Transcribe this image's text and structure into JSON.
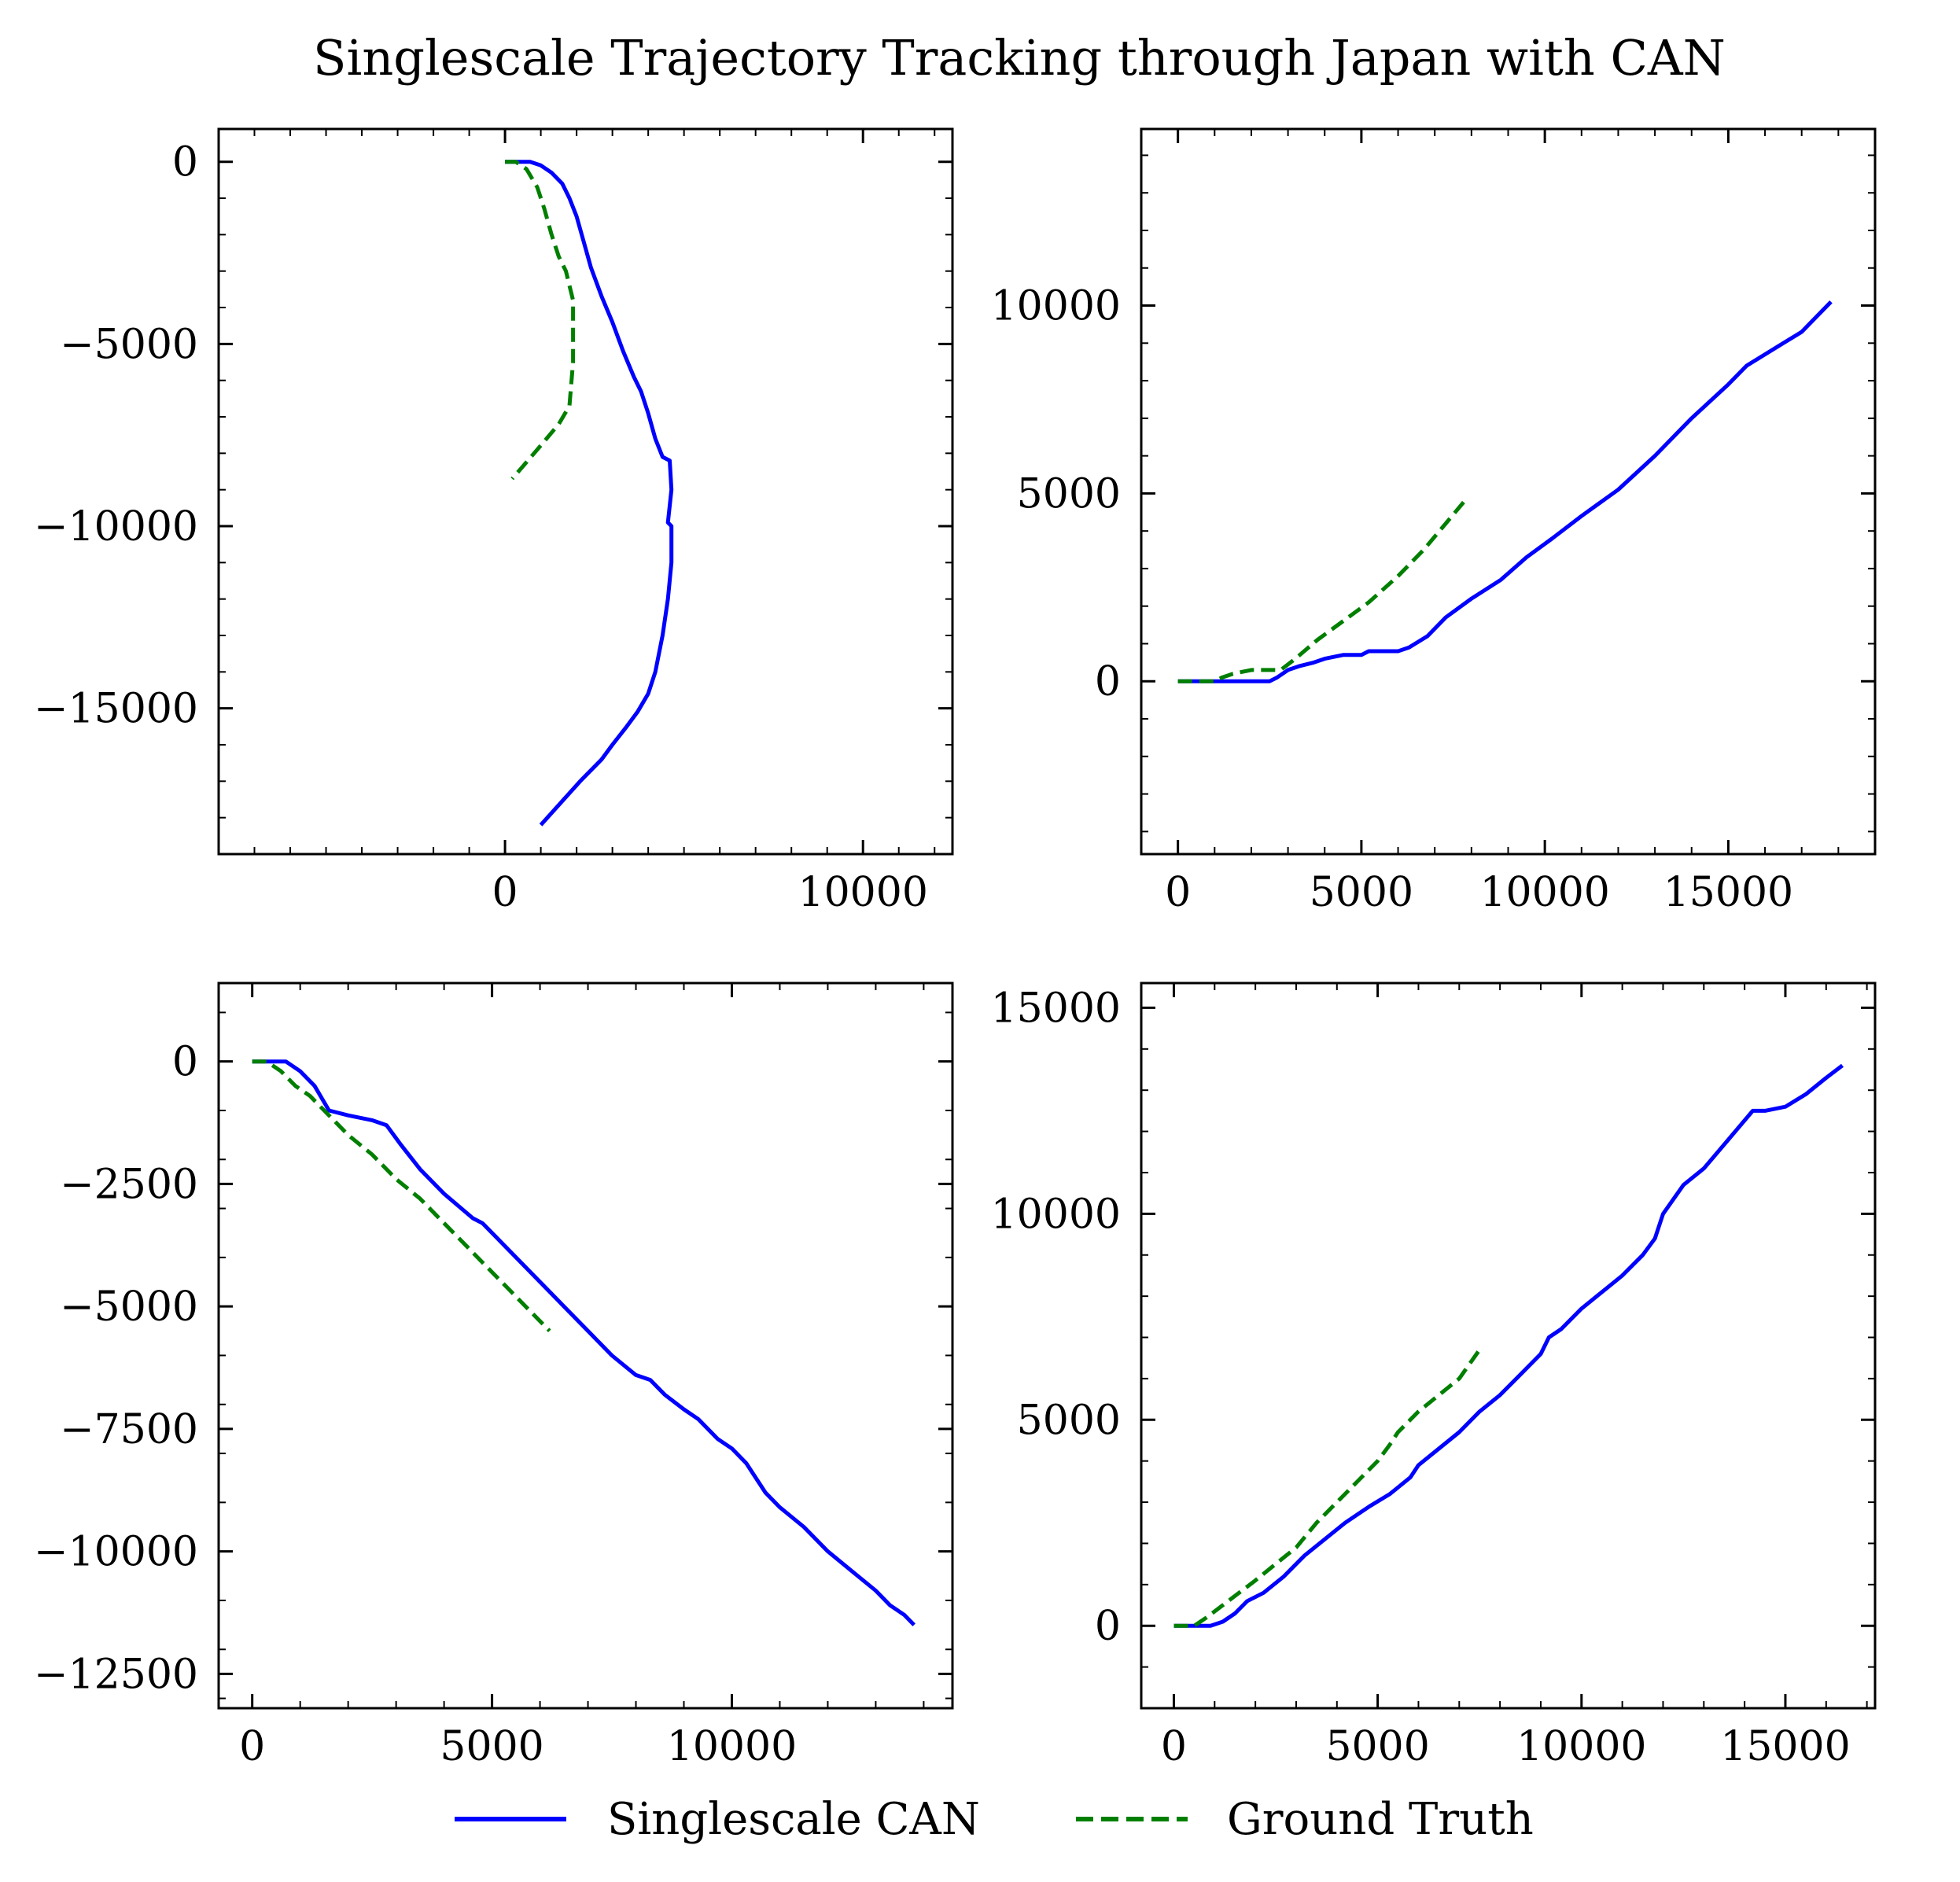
{
  "figure": {
    "title": "Singlescale Trajectory Tracking through Japan with CAN"
  },
  "legend": {
    "placement": "bottom-center",
    "entries": [
      {
        "label": "Singlescale CAN",
        "color": "#0000ff",
        "style": "solid"
      },
      {
        "label": "Ground Truth",
        "color": "#007f00",
        "style": "dashed"
      }
    ]
  },
  "chart_data": [
    {
      "type": "line",
      "grid": false,
      "xlim": [
        -8000,
        12500
      ],
      "ylim": [
        -19000,
        900
      ],
      "xticks": [
        0,
        10000
      ],
      "yticks": [
        0,
        -5000,
        -10000,
        -15000
      ],
      "series": [
        {
          "name": "Singlescale CAN",
          "color": "#0000ff",
          "dash": false,
          "x": [
            0,
            300,
            700,
            1000,
            1300,
            1600,
            1800,
            2000,
            2200,
            2400,
            2700,
            3000,
            3300,
            3600,
            3800,
            4000,
            4200,
            4400,
            4600,
            4650,
            4550,
            4650,
            4650,
            4550,
            4400,
            4200,
            4000,
            3700,
            3400,
            3000,
            2700,
            2100,
            1000
          ],
          "y": [
            0,
            0,
            0,
            -100,
            -300,
            -600,
            -1000,
            -1500,
            -2200,
            -2900,
            -3700,
            -4400,
            -5200,
            -5900,
            -6300,
            -6900,
            -7600,
            -8100,
            -8200,
            -9000,
            -9900,
            -10000,
            -11000,
            -12000,
            -13000,
            -14000,
            -14600,
            -15100,
            -15500,
            -16000,
            -16400,
            -17000,
            -18200
          ]
        },
        {
          "name": "Ground Truth",
          "color": "#007f00",
          "dash": true,
          "x": [
            0,
            300,
            600,
            900,
            1100,
            1300,
            1500,
            1700,
            1900,
            1900,
            1900,
            1800,
            1500,
            900,
            200
          ],
          "y": [
            0,
            0,
            -200,
            -700,
            -1300,
            -2000,
            -2600,
            -3000,
            -3800,
            -4500,
            -5500,
            -6700,
            -7200,
            -7900,
            -8700
          ]
        }
      ]
    },
    {
      "type": "line",
      "grid": false,
      "xlim": [
        -1000,
        19000
      ],
      "ylim": [
        -4600,
        14700
      ],
      "xticks": [
        0,
        5000,
        10000,
        15000
      ],
      "yticks": [
        0,
        5000,
        10000
      ],
      "series": [
        {
          "name": "Singlescale CAN",
          "color": "#0000ff",
          "dash": false,
          "x": [
            0,
            1000,
            2000,
            2500,
            2700,
            3000,
            3300,
            3700,
            4000,
            4500,
            5000,
            5200,
            5500,
            6000,
            6300,
            6800,
            7300,
            8000,
            8800,
            9500,
            10200,
            11000,
            12000,
            13000,
            14000,
            15000,
            15500,
            16500,
            17000,
            17800
          ],
          "y": [
            0,
            0,
            0,
            0,
            100,
            300,
            400,
            500,
            600,
            700,
            700,
            800,
            800,
            800,
            900,
            1200,
            1700,
            2200,
            2700,
            3300,
            3800,
            4400,
            5100,
            6000,
            7000,
            7900,
            8400,
            9000,
            9300,
            10100
          ]
        },
        {
          "name": "Ground Truth",
          "color": "#007f00",
          "dash": true,
          "x": [
            0,
            600,
            1000,
            1200,
            1500,
            2000,
            2500,
            2800,
            3200,
            3800,
            4500,
            5200,
            6000,
            6700,
            7300,
            7900
          ],
          "y": [
            0,
            0,
            0,
            100,
            200,
            300,
            300,
            300,
            600,
            1100,
            1600,
            2100,
            2800,
            3500,
            4200,
            4900
          ]
        }
      ]
    },
    {
      "type": "line",
      "grid": false,
      "xlim": [
        -700,
        14600
      ],
      "ylim": [
        -13200,
        1600
      ],
      "xticks": [
        0,
        5000,
        10000
      ],
      "yticks": [
        0,
        -2500,
        -5000,
        -7500,
        -10000,
        -12500
      ],
      "series": [
        {
          "name": "Singlescale CAN",
          "color": "#0000ff",
          "dash": false,
          "x": [
            0,
            300,
            700,
            1000,
            1300,
            1600,
            2000,
            2500,
            2800,
            3100,
            3500,
            4000,
            4600,
            4800,
            5100,
            5400,
            6000,
            6500,
            7000,
            7500,
            8000,
            8300,
            8600,
            9000,
            9300,
            9700,
            10000,
            10300,
            10700,
            11000,
            11500,
            12000,
            12500,
            13000,
            13300,
            13600,
            13800
          ],
          "y": [
            0,
            0,
            0,
            -200,
            -500,
            -1000,
            -1100,
            -1200,
            -1300,
            -1700,
            -2200,
            -2700,
            -3200,
            -3300,
            -3600,
            -3900,
            -4500,
            -5000,
            -5500,
            -6000,
            -6400,
            -6500,
            -6800,
            -7100,
            -7300,
            -7700,
            -7900,
            -8200,
            -8800,
            -9100,
            -9500,
            -10000,
            -10400,
            -10800,
            -11100,
            -11300,
            -11500
          ]
        },
        {
          "name": "Ground Truth",
          "color": "#007f00",
          "dash": true,
          "x": [
            0,
            300,
            600,
            900,
            1200,
            1600,
            2000,
            2500,
            3000,
            3500,
            4000,
            4500,
            5000,
            5500,
            6000,
            6200
          ],
          "y": [
            0,
            0,
            -200,
            -500,
            -700,
            -1100,
            -1500,
            -1900,
            -2400,
            -2800,
            -3300,
            -3800,
            -4300,
            -4800,
            -5300,
            -5500
          ]
        }
      ]
    },
    {
      "type": "line",
      "grid": false,
      "xlim": [
        -800,
        17200
      ],
      "ylim": [
        -2000,
        15600
      ],
      "xticks": [
        0,
        5000,
        10000,
        15000
      ],
      "yticks": [
        0,
        5000,
        10000,
        15000
      ],
      "series": [
        {
          "name": "Singlescale CAN",
          "color": "#0000ff",
          "dash": false,
          "x": [
            0,
            500,
            900,
            1200,
            1500,
            1800,
            2200,
            2700,
            3200,
            3700,
            4200,
            4500,
            4800,
            5300,
            5800,
            6000,
            6500,
            7000,
            7500,
            8000,
            8500,
            9000,
            9200,
            9500,
            10000,
            10500,
            11000,
            11500,
            11800,
            12000,
            12500,
            13000,
            13600,
            14200,
            14500,
            15000,
            15500,
            16000,
            16400
          ],
          "y": [
            0,
            0,
            0,
            100,
            300,
            600,
            800,
            1200,
            1700,
            2100,
            2500,
            2700,
            2900,
            3200,
            3600,
            3900,
            4300,
            4700,
            5200,
            5600,
            6100,
            6600,
            7000,
            7200,
            7700,
            8100,
            8500,
            9000,
            9400,
            10000,
            10700,
            11100,
            11800,
            12500,
            12500,
            12600,
            12900,
            13300,
            13600
          ]
        },
        {
          "name": "Ground Truth",
          "color": "#007f00",
          "dash": true,
          "x": [
            0,
            500,
            800,
            1200,
            1600,
            2000,
            2500,
            3000,
            3500,
            4000,
            4500,
            5000,
            5300,
            5500,
            6000,
            6500,
            7000,
            7500
          ],
          "y": [
            0,
            0,
            200,
            500,
            800,
            1100,
            1500,
            1900,
            2500,
            3000,
            3500,
            4000,
            4400,
            4700,
            5200,
            5600,
            6000,
            6700
          ]
        }
      ]
    }
  ]
}
